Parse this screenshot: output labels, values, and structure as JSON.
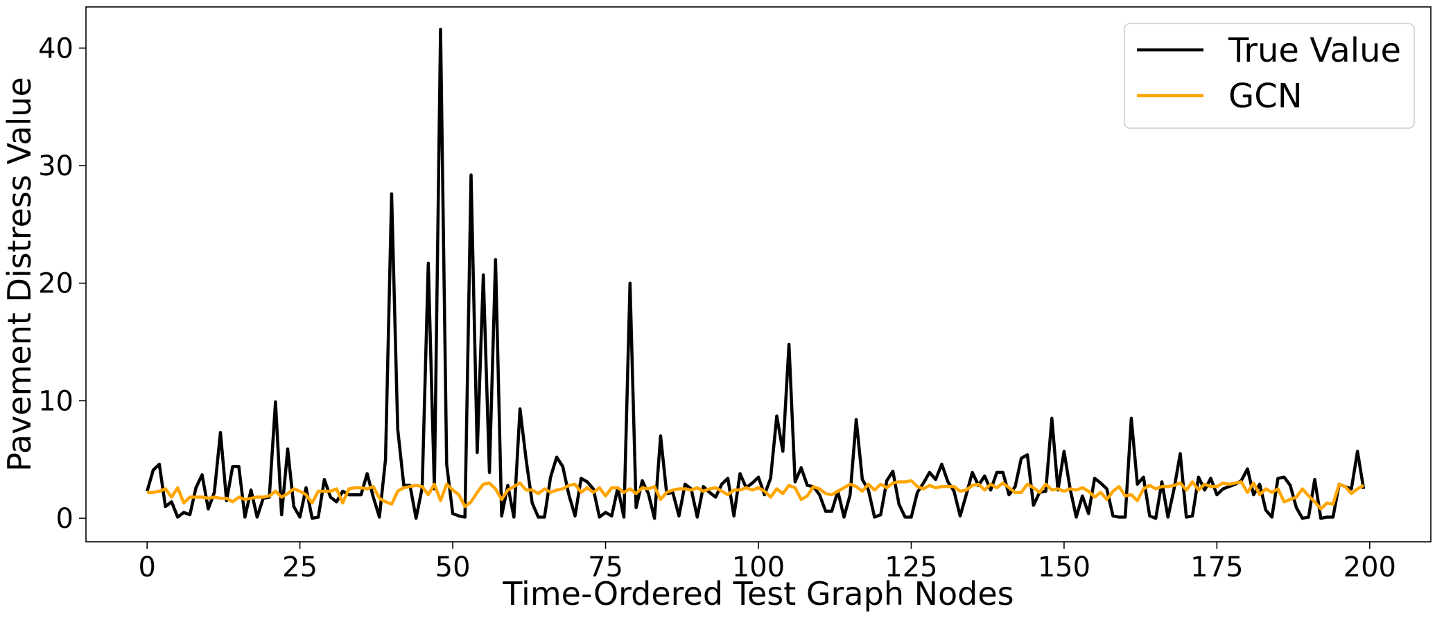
{
  "chart_data": {
    "type": "line",
    "title": "",
    "xlabel": "Time-Ordered Test Graph Nodes",
    "ylabel": "Pavement Distress Value",
    "xlim": [
      -10,
      210
    ],
    "ylim": [
      -2,
      43.5
    ],
    "xticks": [
      0,
      25,
      50,
      75,
      100,
      125,
      150,
      175,
      200
    ],
    "yticks": [
      0,
      10,
      20,
      30,
      40
    ],
    "xtick_labels": [
      "0",
      "25",
      "50",
      "75",
      "100",
      "125",
      "150",
      "175",
      "200"
    ],
    "ytick_labels": [
      "0",
      "10",
      "20",
      "30",
      "40"
    ],
    "grid": false,
    "legend_position": "top-right",
    "series": [
      {
        "name": "True Value",
        "color": "#000000",
        "values": [
          2.3,
          4.1,
          4.6,
          1.0,
          1.4,
          0.1,
          0.5,
          0.3,
          2.6,
          3.7,
          0.8,
          2.2,
          7.3,
          1.5,
          4.4,
          4.4,
          0.1,
          2.4,
          0.1,
          1.7,
          1.8,
          9.9,
          0.3,
          5.9,
          1.0,
          0.1,
          2.6,
          0.0,
          0.1,
          3.3,
          1.8,
          1.4,
          2.3,
          2.0,
          2.0,
          2.0,
          3.8,
          1.8,
          0.1,
          5.0,
          27.6,
          7.6,
          2.8,
          2.8,
          0.0,
          2.6,
          21.7,
          2.5,
          41.6,
          4.6,
          0.4,
          0.2,
          0.1,
          29.2,
          5.6,
          20.7,
          3.9,
          22.0,
          0.2,
          2.8,
          0.1,
          9.3,
          5.0,
          1.3,
          0.1,
          0.1,
          3.5,
          5.2,
          4.4,
          2.0,
          0.2,
          3.4,
          3.1,
          2.5,
          0.1,
          0.5,
          0.2,
          2.6,
          0.1,
          20.0,
          0.9,
          3.2,
          2.1,
          0.0,
          7.0,
          2.1,
          2.2,
          0.2,
          2.9,
          2.5,
          0.1,
          2.7,
          2.2,
          1.8,
          2.9,
          3.4,
          0.2,
          3.8,
          2.6,
          3.0,
          3.5,
          2.0,
          3.4,
          8.7,
          5.7,
          14.8,
          3.1,
          4.3,
          2.8,
          2.7,
          2.0,
          0.6,
          0.6,
          2.3,
          0.1,
          2.0,
          8.4,
          3.3,
          2.4,
          0.1,
          0.3,
          3.2,
          4.0,
          1.2,
          0.1,
          0.1,
          2.2,
          3.0,
          3.9,
          3.3,
          4.6,
          3.1,
          2.3,
          0.2,
          2.0,
          3.9,
          2.8,
          3.6,
          2.4,
          3.9,
          3.9,
          2.0,
          2.7,
          5.1,
          5.4,
          1.1,
          2.2,
          2.3,
          8.5,
          2.4,
          5.7,
          2.5,
          0.1,
          1.9,
          0.4,
          3.4,
          3.0,
          2.5,
          0.2,
          0.1,
          0.1,
          8.5,
          2.9,
          3.5,
          0.2,
          0.0,
          3.1,
          0.1,
          2.5,
          5.5,
          0.1,
          0.2,
          3.5,
          2.4,
          3.4,
          2.0,
          2.5,
          2.7,
          2.9,
          3.2,
          4.2,
          2.0,
          2.9,
          0.7,
          0.1,
          3.4,
          3.5,
          2.8,
          0.9,
          0.0,
          0.1,
          3.3,
          0.0,
          0.1,
          0.1,
          2.9,
          2.7,
          2.5,
          5.7,
          2.5
        ]
      },
      {
        "name": "GCN",
        "color": "#FFA500",
        "values": [
          2.2,
          2.2,
          2.3,
          2.5,
          1.8,
          2.6,
          1.3,
          1.8,
          1.8,
          1.8,
          1.7,
          1.8,
          1.7,
          1.7,
          1.4,
          1.8,
          1.6,
          1.7,
          1.8,
          1.8,
          1.9,
          2.3,
          1.8,
          2.1,
          2.5,
          2.3,
          2.0,
          1.3,
          2.3,
          2.3,
          2.3,
          2.5,
          1.3,
          2.5,
          2.6,
          2.6,
          2.5,
          2.7,
          1.7,
          1.4,
          1.2,
          2.3,
          2.6,
          2.7,
          2.8,
          2.7,
          2.0,
          2.9,
          1.5,
          2.9,
          2.4,
          2.0,
          1.0,
          1.4,
          2.2,
          2.9,
          3.0,
          2.5,
          1.6,
          2.4,
          2.7,
          3.0,
          2.4,
          2.4,
          2.1,
          2.5,
          2.2,
          2.4,
          2.5,
          2.8,
          2.9,
          2.2,
          2.6,
          2.2,
          2.6,
          1.9,
          2.6,
          2.6,
          2.2,
          2.5,
          2.1,
          2.6,
          2.5,
          2.7,
          1.6,
          2.2,
          2.4,
          2.5,
          2.5,
          2.4,
          2.6,
          2.3,
          2.5,
          2.6,
          2.3,
          2.0,
          2.4,
          2.4,
          2.6,
          2.4,
          2.6,
          2.3,
          1.8,
          2.5,
          2.1,
          2.8,
          2.6,
          1.6,
          1.9,
          2.7,
          2.5,
          2.1,
          2.0,
          2.3,
          2.6,
          2.9,
          2.7,
          2.3,
          2.9,
          2.4,
          2.9,
          2.6,
          3.0,
          3.1,
          3.1,
          3.2,
          2.7,
          2.5,
          2.8,
          2.6,
          2.7,
          2.7,
          2.7,
          2.3,
          2.4,
          2.8,
          2.9,
          2.4,
          2.9,
          2.6,
          3.0,
          2.6,
          2.2,
          2.2,
          2.9,
          2.6,
          2.2,
          2.9,
          2.4,
          2.5,
          2.3,
          2.5,
          2.4,
          2.6,
          2.3,
          1.8,
          2.2,
          1.6,
          2.3,
          2.7,
          1.9,
          2.0,
          1.5,
          2.5,
          2.8,
          2.5,
          2.7,
          2.7,
          2.8,
          3.0,
          2.4,
          3.1,
          2.4,
          2.9,
          2.7,
          2.7,
          3.0,
          2.9,
          3.0,
          3.1,
          2.2,
          3.0,
          2.0,
          2.5,
          2.2,
          2.5,
          1.4,
          1.6,
          1.8,
          2.5,
          1.9,
          1.4,
          0.8,
          1.3,
          1.2,
          2.9,
          2.7,
          2.1,
          2.5,
          2.8
        ]
      }
    ]
  }
}
